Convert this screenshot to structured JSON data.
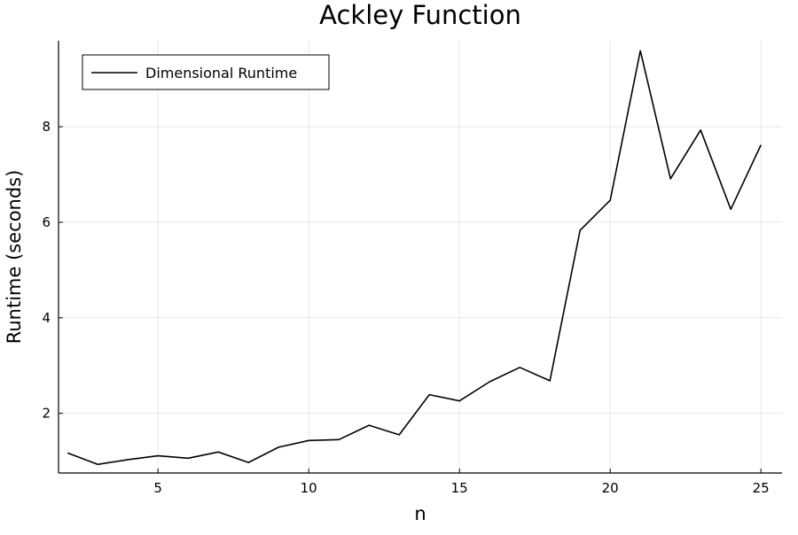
{
  "chart_data": {
    "type": "line",
    "title": "Ackley Function",
    "xlabel": "n",
    "ylabel": "Runtime (seconds)",
    "xlim": [
      1.7,
      25.7
    ],
    "ylim": [
      0.75,
      9.8
    ],
    "xticks": [
      5,
      10,
      15,
      20,
      25
    ],
    "yticks": [
      2,
      4,
      6,
      8
    ],
    "grid": true,
    "legend_position": "top-left",
    "series": [
      {
        "name": "Dimensional Runtime",
        "color": "#000000",
        "x": [
          2,
          3,
          4,
          5,
          6,
          7,
          8,
          9,
          10,
          11,
          12,
          13,
          14,
          15,
          16,
          17,
          18,
          19,
          20,
          21,
          22,
          23,
          24,
          25
        ],
        "y": [
          1.17,
          0.93,
          1.03,
          1.11,
          1.06,
          1.19,
          0.97,
          1.29,
          1.43,
          1.45,
          1.75,
          1.55,
          2.39,
          2.26,
          2.66,
          2.96,
          2.68,
          5.83,
          6.46,
          9.59,
          6.91,
          7.93,
          6.27,
          7.62
        ]
      }
    ]
  }
}
